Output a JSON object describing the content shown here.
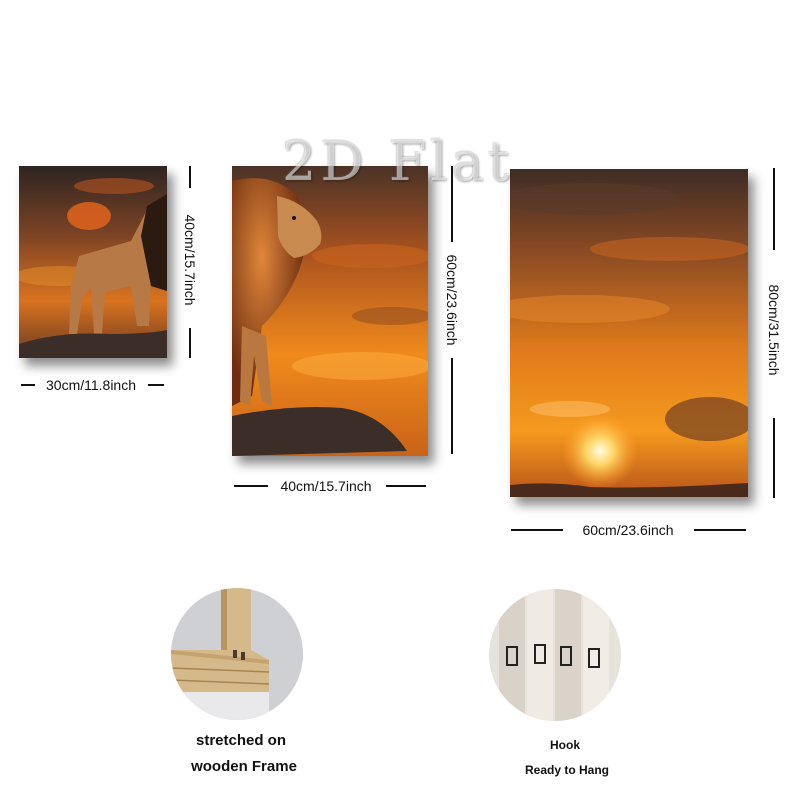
{
  "watermark": "2D Flat",
  "panels": [
    {
      "width_label": "30cm/11.8inch",
      "height_label": "40cm/15.7inch"
    },
    {
      "width_label": "40cm/15.7inch",
      "height_label": "60cm/23.6inch"
    },
    {
      "width_label": "60cm/23.6inch",
      "height_label": "80cm/31.5inch"
    }
  ],
  "features": {
    "frame": {
      "line1": "stretched on",
      "line2": "wooden Frame"
    },
    "hook": {
      "line1": "Hook",
      "line2": "Ready to Hang"
    }
  },
  "colors": {
    "sky_top": "#3a2a22",
    "sky_mid": "#d9661a",
    "sun": "#fff3b0",
    "rock": "#3b2d27",
    "mane": "#c2561b"
  }
}
